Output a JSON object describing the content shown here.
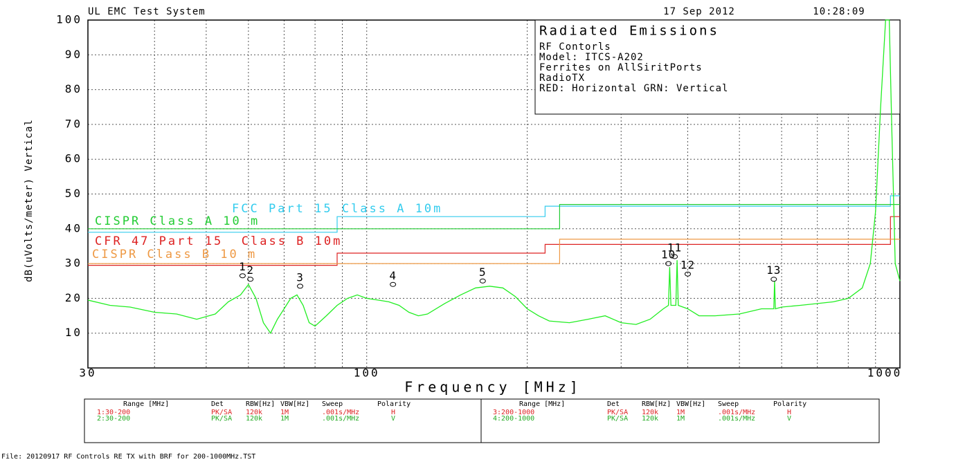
{
  "chart_data": {
    "type": "line",
    "title": "Radiated Emissions",
    "header": {
      "system": "UL EMC Test System",
      "date": "17 Sep 2012",
      "time": "10:28:09"
    },
    "info": [
      "RF Contorls",
      "Model: ITCS-A202",
      "Ferrites on AllSiritPorts",
      "RadioTX",
      "RED: Horizontal GRN: Vertical"
    ],
    "xlabel": "Frequency [MHz]",
    "ylabel": "dB(uVolts/meter) Vertical",
    "xscale": "log",
    "xlim": [
      30,
      1000
    ],
    "ylim": [
      0,
      100
    ],
    "xticks": [
      30,
      100,
      1000
    ],
    "xminor": [
      40,
      50,
      60,
      70,
      80,
      90,
      200,
      300,
      400,
      500,
      600,
      700,
      800,
      900
    ],
    "yticks": [
      10,
      20,
      30,
      40,
      50,
      60,
      70,
      80,
      90,
      100
    ],
    "grid": true,
    "series": [
      {
        "name": "FCC Part 15 Class A 10m",
        "color": "#33ccee",
        "x": [
          30,
          88,
          88,
          216,
          216,
          960,
          960,
          1000
        ],
        "values": [
          39,
          39,
          43.5,
          43.5,
          46.5,
          46.5,
          49.5,
          49.5
        ]
      },
      {
        "name": "CISPR Class A 10 m",
        "color": "#22cc33",
        "x": [
          30,
          230,
          230,
          1000
        ],
        "values": [
          40,
          40,
          47,
          47
        ]
      },
      {
        "name": "CFR 47 Part 15  Class B 10m",
        "color": "#dd2222",
        "x": [
          30,
          88,
          88,
          216,
          216,
          960,
          960,
          1000
        ],
        "values": [
          29.5,
          29.5,
          33,
          33,
          35.5,
          35.5,
          43.5,
          43.5
        ]
      },
      {
        "name": "CISPR Class B 10 m",
        "color": "#ee9944",
        "x": [
          30,
          230,
          230,
          1000
        ],
        "values": [
          30,
          30,
          37,
          37
        ]
      },
      {
        "color": "#22ee22",
        "x": [
          30,
          33,
          36,
          40,
          44,
          48,
          52,
          55,
          58,
          60,
          62,
          64,
          66,
          68,
          70,
          72,
          74,
          76,
          78,
          80,
          84,
          88,
          92,
          96,
          100,
          105,
          110,
          115,
          120,
          125,
          130,
          140,
          150,
          160,
          170,
          180,
          190,
          200,
          210,
          220,
          240,
          260,
          280,
          300,
          320,
          340,
          360,
          368,
          370,
          372,
          380,
          382,
          384,
          400,
          420,
          450,
          500,
          550,
          580,
          582,
          584,
          600,
          650,
          700,
          750,
          800,
          850,
          880,
          900,
          920,
          940,
          955,
          965,
          980,
          1000
        ],
        "values": [
          19.5,
          18,
          17.5,
          16,
          15.5,
          14,
          15.5,
          19,
          21,
          24,
          20,
          13,
          10,
          14,
          17,
          20,
          21,
          18,
          13,
          12,
          15,
          18,
          20,
          21,
          20,
          19.5,
          19,
          18,
          16,
          15,
          15.5,
          18.5,
          21,
          23,
          23.5,
          23,
          20.5,
          17,
          15,
          13.5,
          13,
          14,
          15,
          13,
          12.5,
          14,
          17,
          18,
          29,
          18,
          18,
          31,
          18,
          17,
          15,
          15,
          15.5,
          17,
          17,
          25,
          17,
          17.5,
          18,
          18.5,
          19,
          20,
          23,
          30,
          45,
          75,
          100,
          100,
          70,
          30,
          25
        ]
      }
    ],
    "markers": [
      {
        "label": "1",
        "x": 58.5,
        "y": 26.5
      },
      {
        "label": "2",
        "x": 60.5,
        "y": 25.5
      },
      {
        "label": "3",
        "x": 75,
        "y": 23.5
      },
      {
        "label": "4",
        "x": 112,
        "y": 24
      },
      {
        "label": "5",
        "x": 165,
        "y": 25
      },
      {
        "label": "10",
        "x": 368,
        "y": 30
      },
      {
        "label": "11",
        "x": 378,
        "y": 32
      },
      {
        "label": "12",
        "x": 400,
        "y": 27
      },
      {
        "label": "13",
        "x": 580,
        "y": 25.5
      }
    ]
  },
  "table": {
    "headers": [
      "Range [MHz]",
      "Det",
      "RBW[Hz]",
      "VBW[Hz]",
      "Sweep",
      "Polarity"
    ],
    "left": [
      [
        "1:30-200",
        "PK/SA",
        "120k",
        "1M",
        ".001s/MHz",
        "H"
      ],
      [
        "2:30-200",
        "PK/SA",
        "120k",
        "1M",
        ".001s/MHz",
        "V"
      ]
    ],
    "right": [
      [
        "3:200-1000",
        "PK/SA",
        "120k",
        "1M",
        ".001s/MHz",
        "H"
      ],
      [
        "4:200-1000",
        "PK/SA",
        "120k",
        "1M",
        ".001s/MHz",
        "V"
      ]
    ]
  },
  "footer": "File: 20120917 RF Controls RE TX with BRF for 200-1000MHz.TST"
}
